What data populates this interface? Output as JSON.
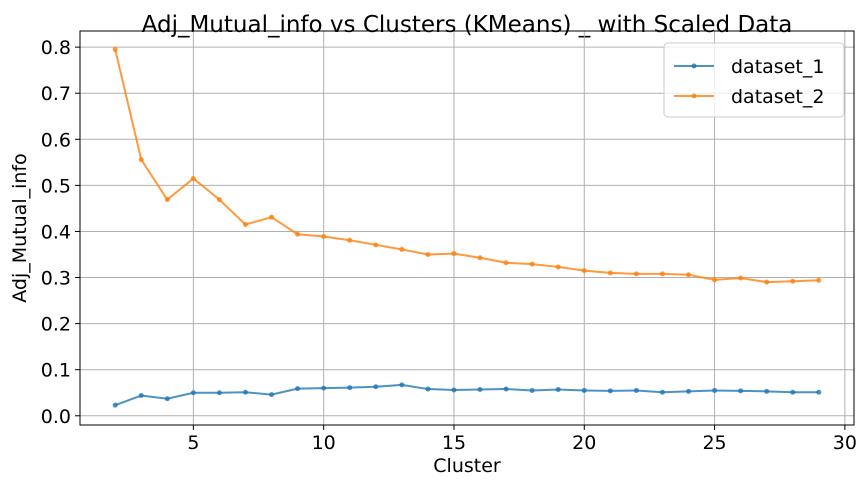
{
  "chart_data": {
    "type": "line",
    "title": "Adj_Mutual_info vs Clusters (KMeans) _ with Scaled Data",
    "xlabel": "Cluster",
    "ylabel": "Adj_Mutual_info",
    "xlim": [
      0.65,
      30.35
    ],
    "ylim": [
      -0.02,
      0.835
    ],
    "xticks": [
      5,
      10,
      15,
      20,
      25,
      30
    ],
    "yticks": [
      0.0,
      0.1,
      0.2,
      0.3,
      0.4,
      0.5,
      0.6,
      0.7,
      0.8
    ],
    "grid": true,
    "legend_position": "top-right",
    "x": [
      2,
      3,
      4,
      5,
      6,
      7,
      8,
      9,
      10,
      11,
      12,
      13,
      14,
      15,
      16,
      17,
      18,
      19,
      20,
      21,
      22,
      23,
      24,
      25,
      26,
      27,
      28,
      29
    ],
    "series": [
      {
        "name": "dataset_1",
        "color": "#1f77b4",
        "values": [
          0.023,
          0.044,
          0.037,
          0.05,
          0.05,
          0.051,
          0.046,
          0.059,
          0.06,
          0.061,
          0.063,
          0.067,
          0.058,
          0.056,
          0.057,
          0.058,
          0.055,
          0.057,
          0.055,
          0.054,
          0.055,
          0.051,
          0.053,
          0.055,
          0.054,
          0.053,
          0.051,
          0.051
        ]
      },
      {
        "name": "dataset_2",
        "color": "#ff7f0e",
        "values": [
          0.795,
          0.556,
          0.469,
          0.515,
          0.469,
          0.415,
          0.431,
          0.394,
          0.389,
          0.381,
          0.371,
          0.361,
          0.35,
          0.352,
          0.343,
          0.332,
          0.329,
          0.323,
          0.315,
          0.31,
          0.308,
          0.308,
          0.306,
          0.295,
          0.299,
          0.29,
          0.292,
          0.294
        ]
      }
    ]
  }
}
